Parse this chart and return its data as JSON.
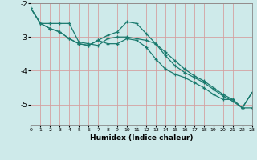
{
  "title": "",
  "xlabel": "Humidex (Indice chaleur)",
  "background_color": "#ceeaea",
  "line_color": "#1a7a6e",
  "grid_color": "#d4a0a0",
  "ylim": [
    -5.6,
    -2.0
  ],
  "xlim": [
    0,
    23
  ],
  "yticks": [
    -5,
    -4,
    -3,
    -2
  ],
  "xticks": [
    0,
    1,
    2,
    3,
    4,
    5,
    6,
    7,
    8,
    9,
    10,
    11,
    12,
    13,
    14,
    15,
    16,
    17,
    18,
    19,
    20,
    21,
    22,
    23
  ],
  "series1_x": [
    0,
    1,
    2,
    3,
    4,
    5,
    6,
    7,
    8,
    9,
    10,
    11,
    12,
    13,
    14,
    15,
    16,
    17,
    18,
    19,
    20,
    21,
    22,
    23
  ],
  "series1_y": [
    -2.15,
    -2.6,
    -2.75,
    -2.85,
    -3.05,
    -3.2,
    -3.25,
    -3.1,
    -2.95,
    -2.85,
    -2.55,
    -2.6,
    -2.9,
    -3.2,
    -3.55,
    -3.85,
    -4.05,
    -4.2,
    -4.35,
    -4.55,
    -4.75,
    -4.9,
    -5.1,
    -4.65
  ],
  "series2_x": [
    0,
    1,
    2,
    3,
    4,
    5,
    6,
    7,
    8,
    9,
    10,
    11,
    12,
    13,
    14,
    15,
    16,
    17,
    18,
    19,
    20,
    21,
    22,
    23
  ],
  "series2_y": [
    -2.15,
    -2.6,
    -2.6,
    -2.6,
    -2.6,
    -3.15,
    -3.2,
    -3.25,
    -3.05,
    -3.0,
    -3.0,
    -3.05,
    -3.1,
    -3.2,
    -3.45,
    -3.7,
    -3.95,
    -4.15,
    -4.3,
    -4.5,
    -4.7,
    -4.85,
    -5.1,
    -5.1
  ],
  "series3_x": [
    0,
    1,
    2,
    3,
    4,
    5,
    6,
    7,
    8,
    9,
    10,
    11,
    12,
    13,
    14,
    15,
    16,
    17,
    18,
    19,
    20,
    21,
    22,
    23
  ],
  "series3_y": [
    -2.15,
    -2.6,
    -2.75,
    -2.85,
    -3.05,
    -3.2,
    -3.25,
    -3.1,
    -3.2,
    -3.2,
    -3.05,
    -3.1,
    -3.3,
    -3.65,
    -3.95,
    -4.1,
    -4.2,
    -4.35,
    -4.5,
    -4.7,
    -4.85,
    -4.85,
    -5.1,
    -4.65
  ]
}
